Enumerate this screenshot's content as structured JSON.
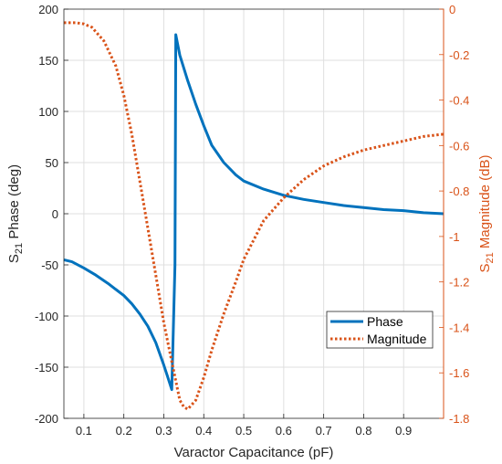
{
  "chart_data": {
    "type": "line",
    "xlabel": "Varactor Capacitance (pF)",
    "xlim": [
      0.05,
      1.0
    ],
    "xticks": [
      "0.1",
      "0.2",
      "0.3",
      "0.4",
      "0.5",
      "0.6",
      "0.7",
      "0.8",
      "0.9"
    ],
    "left_axis": {
      "label_main": "S",
      "label_sub": "21",
      "label_rest": " Phase (deg)",
      "ylim": [
        -200,
        200
      ],
      "ticks": [
        "200",
        "150",
        "100",
        "50",
        "0",
        "-50",
        "-100",
        "-150",
        "-200"
      ],
      "color": "#000000"
    },
    "right_axis": {
      "label_main": "S",
      "label_sub": "21",
      "label_rest": " Magnitude (dB)",
      "ylim": [
        -1.8,
        0
      ],
      "ticks": [
        "0",
        "-0.2",
        "-0.4",
        "-0.6",
        "-0.8",
        "-1",
        "-1.2",
        "-1.4",
        "-1.6",
        "-1.8"
      ],
      "color": "#D95319"
    },
    "grid": true,
    "legend_position": "lower-right",
    "series": [
      {
        "name": "Phase",
        "axis": "left",
        "style": "solid",
        "color": "#0072BD",
        "x": [
          0.05,
          0.07,
          0.1,
          0.13,
          0.16,
          0.2,
          0.22,
          0.24,
          0.26,
          0.28,
          0.3,
          0.31,
          0.32,
          0.328,
          0.33,
          0.34,
          0.36,
          0.38,
          0.4,
          0.42,
          0.45,
          0.48,
          0.5,
          0.55,
          0.6,
          0.65,
          0.7,
          0.75,
          0.8,
          0.85,
          0.9,
          0.95,
          1.0
        ],
        "y": [
          -45,
          -47,
          -53,
          -60,
          -68,
          -80,
          -88,
          -98,
          -110,
          -126,
          -148,
          -160,
          -172,
          -50,
          175,
          155,
          130,
          107,
          86,
          67,
          50,
          38,
          32,
          24,
          18,
          14,
          11,
          8,
          6,
          4,
          3,
          1,
          0
        ]
      },
      {
        "name": "Magnitude",
        "axis": "right",
        "style": "dotted",
        "color": "#D95319",
        "x": [
          0.05,
          0.08,
          0.1,
          0.12,
          0.15,
          0.18,
          0.2,
          0.22,
          0.25,
          0.28,
          0.3,
          0.32,
          0.34,
          0.35,
          0.36,
          0.38,
          0.4,
          0.42,
          0.45,
          0.48,
          0.5,
          0.55,
          0.6,
          0.65,
          0.7,
          0.75,
          0.8,
          0.85,
          0.9,
          0.95,
          1.0
        ],
        "y": [
          -0.06,
          -0.06,
          -0.065,
          -0.08,
          -0.14,
          -0.25,
          -0.38,
          -0.55,
          -0.86,
          -1.17,
          -1.38,
          -1.55,
          -1.72,
          -1.75,
          -1.76,
          -1.72,
          -1.62,
          -1.5,
          -1.34,
          -1.2,
          -1.1,
          -0.93,
          -0.83,
          -0.75,
          -0.69,
          -0.65,
          -0.62,
          -0.6,
          -0.58,
          -0.56,
          -0.55
        ]
      }
    ]
  }
}
